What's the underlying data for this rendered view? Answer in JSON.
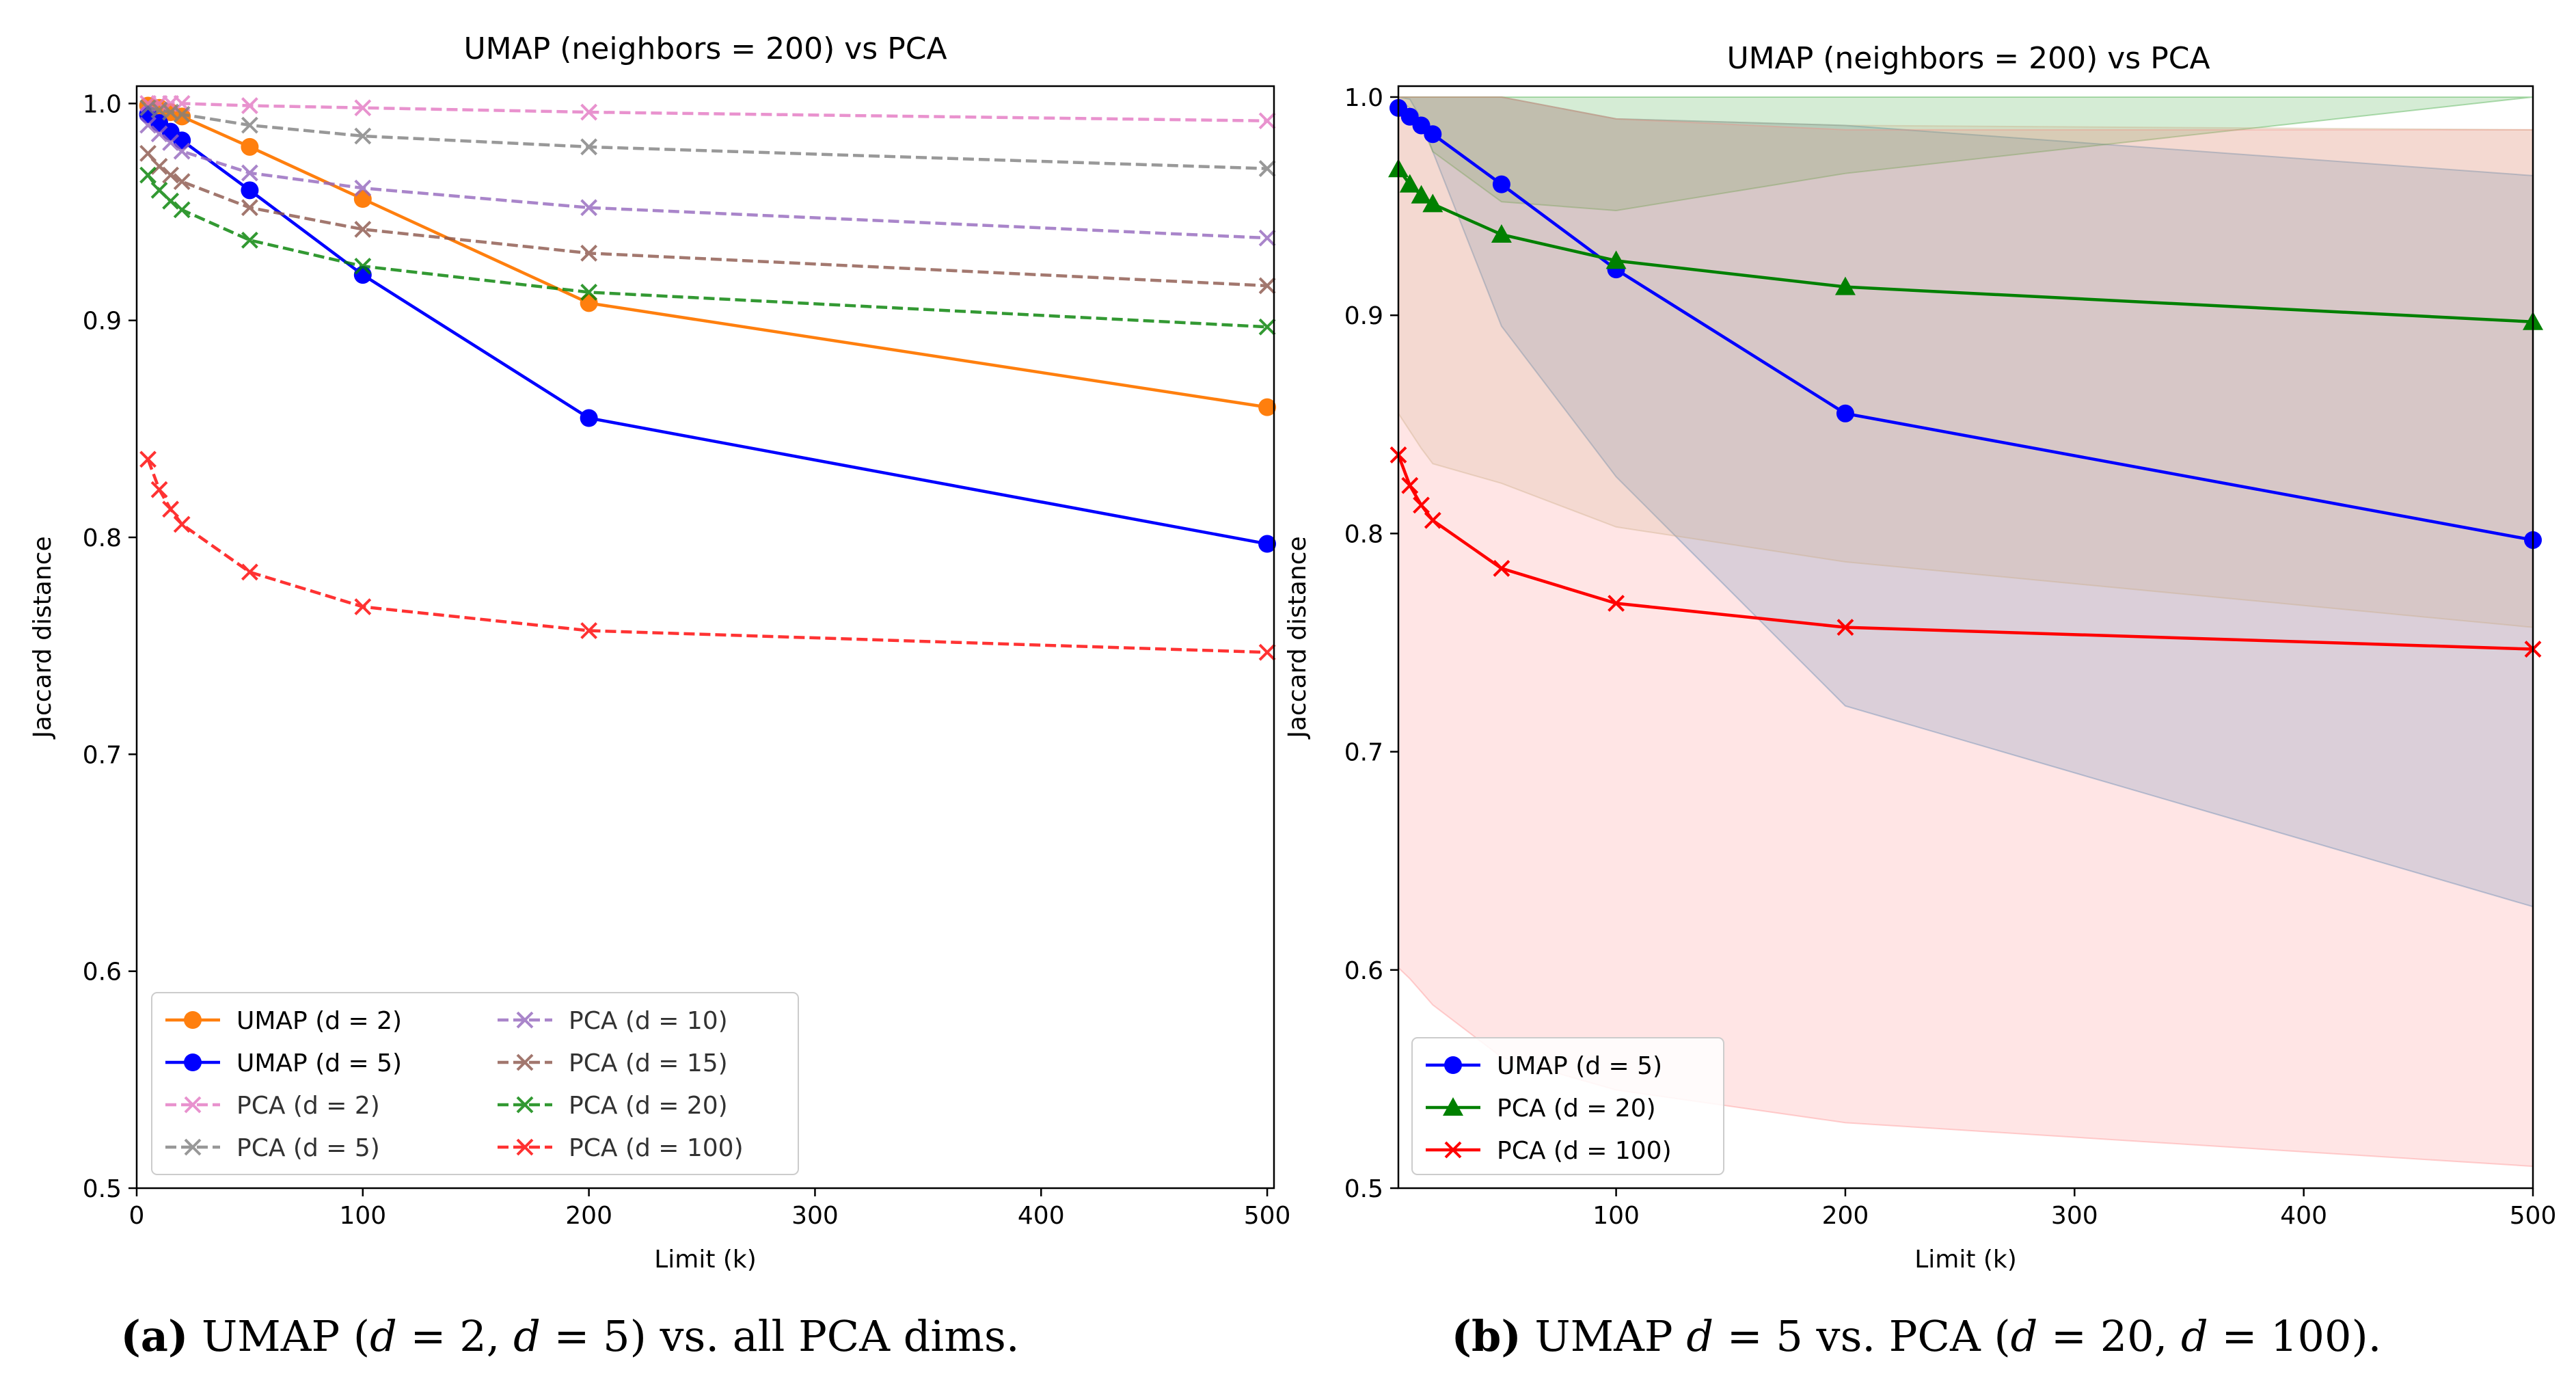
{
  "chart_data": [
    {
      "type": "line",
      "title": "UMAP (neighbors = 200) vs PCA",
      "xlabel": "Limit (k)",
      "ylabel": "Jaccard distance",
      "xlim": [
        0,
        503
      ],
      "ylim": [
        0.5,
        1.008
      ],
      "xticks": [
        0,
        100,
        200,
        300,
        400,
        500
      ],
      "yticks": [
        0.5,
        0.6,
        0.7,
        0.8,
        0.9,
        1.0
      ],
      "xtick_labels": [
        "0",
        "100",
        "200",
        "300",
        "400",
        "500"
      ],
      "ytick_labels": [
        "0.5",
        "0.6",
        "0.7",
        "0.8",
        "0.9",
        "1.0"
      ],
      "grid": false,
      "legend_position": "lower-left",
      "legend_columns": 2,
      "x": [
        5,
        10,
        15,
        20,
        50,
        100,
        200,
        500
      ],
      "series": [
        {
          "name": "UMAP (d = 2)",
          "color": "#ff7f0e",
          "marker": "circle",
          "dash": "solid",
          "opacity": 1,
          "values": [
            0.999,
            0.998,
            0.996,
            0.994,
            0.98,
            0.956,
            0.908,
            0.86
          ]
        },
        {
          "name": "UMAP (d = 5)",
          "color": "#0000ff",
          "marker": "circle",
          "dash": "solid",
          "opacity": 1,
          "values": [
            0.995,
            0.991,
            0.987,
            0.983,
            0.96,
            0.921,
            0.855,
            0.797
          ]
        },
        {
          "name": "PCA (d = 2)",
          "color": "#e377c2",
          "marker": "x",
          "dash": "dashed",
          "opacity": 0.8,
          "values": [
            1.0,
            1.0,
            1.0,
            1.0,
            0.999,
            0.998,
            0.996,
            0.992
          ]
        },
        {
          "name": "PCA (d = 5)",
          "color": "#7f7f7f",
          "marker": "x",
          "dash": "dashed",
          "opacity": 0.8,
          "values": [
            0.998,
            0.997,
            0.996,
            0.995,
            0.99,
            0.985,
            0.98,
            0.97
          ]
        },
        {
          "name": "PCA (d = 10)",
          "color": "#9467bd",
          "marker": "x",
          "dash": "dashed",
          "opacity": 0.8,
          "values": [
            0.99,
            0.986,
            0.982,
            0.978,
            0.968,
            0.961,
            0.952,
            0.938
          ]
        },
        {
          "name": "PCA (d = 15)",
          "color": "#8c564b",
          "marker": "x",
          "dash": "dashed",
          "opacity": 0.8,
          "values": [
            0.977,
            0.971,
            0.967,
            0.964,
            0.952,
            0.942,
            0.931,
            0.916
          ]
        },
        {
          "name": "PCA (d = 20)",
          "color": "#008000",
          "marker": "x",
          "dash": "dashed",
          "opacity": 0.8,
          "values": [
            0.967,
            0.96,
            0.955,
            0.951,
            0.937,
            0.925,
            0.913,
            0.897
          ]
        },
        {
          "name": "PCA (d = 100)",
          "color": "#ff0000",
          "marker": "x",
          "dash": "dashed",
          "opacity": 0.8,
          "values": [
            0.836,
            0.822,
            0.813,
            0.806,
            0.784,
            0.768,
            0.757,
            0.747
          ]
        }
      ]
    },
    {
      "type": "line",
      "title": "UMAP (neighbors = 200) vs PCA",
      "xlabel": "Limit (k)",
      "ylabel": "Jaccard distance",
      "xlim": [
        5,
        500
      ],
      "ylim": [
        0.5,
        1.005
      ],
      "xticks": [
        100,
        200,
        300,
        400,
        500
      ],
      "yticks": [
        0.5,
        0.6,
        0.7,
        0.8,
        0.9,
        1.0
      ],
      "xtick_labels": [
        "100",
        "200",
        "300",
        "400",
        "500"
      ],
      "ytick_labels": [
        "0.5",
        "0.6",
        "0.7",
        "0.8",
        "0.9",
        "1.0"
      ],
      "grid": false,
      "legend_position": "lower-left",
      "legend_columns": 1,
      "x": [
        5,
        10,
        15,
        20,
        50,
        100,
        200,
        500
      ],
      "series": [
        {
          "name": "UMAP (d = 5)",
          "color": "#0000ff",
          "marker": "circle",
          "dash": "solid",
          "opacity": 1,
          "values": [
            0.995,
            0.991,
            0.987,
            0.983,
            0.96,
            0.921,
            0.855,
            0.797
          ],
          "band_color": "#1f77b4",
          "band_lower": [
            1.0,
            0.999,
            0.99,
            0.975,
            0.895,
            0.826,
            0.721,
            0.629
          ],
          "band_upper": [
            1.0,
            1.0,
            1.0,
            1.0,
            1.0,
            0.99,
            0.987,
            0.964
          ]
        },
        {
          "name": "PCA (d = 20)",
          "color": "#008000",
          "marker": "triangle",
          "dash": "solid",
          "opacity": 1,
          "values": [
            0.967,
            0.96,
            0.955,
            0.951,
            0.937,
            0.925,
            0.913,
            0.897
          ],
          "band_color": "#2ca02c",
          "band_lower": [
            0.999,
            0.995,
            0.987,
            0.975,
            0.952,
            0.948,
            0.965,
            1.0
          ],
          "band_upper": [
            1.0,
            1.0,
            1.0,
            1.0,
            1.0,
            1.0,
            1.0,
            1.0
          ]
        },
        {
          "name": "PCA (d = 100)",
          "color": "#ff0000",
          "marker": "x",
          "dash": "solid",
          "opacity": 1,
          "values": [
            0.836,
            0.822,
            0.813,
            0.806,
            0.784,
            0.768,
            0.757,
            0.747
          ],
          "band_color": "#ff7f7f",
          "band_lower": [
            0.601,
            0.596,
            0.59,
            0.584,
            0.56,
            0.545,
            0.53,
            0.51
          ],
          "band_upper": [
            1.0,
            1.0,
            1.0,
            1.0,
            1.0,
            0.99,
            0.985,
            0.985
          ]
        },
        {
          "name": "PCA (d = 15) band",
          "legend": false,
          "band_only": true,
          "band_color": "#c8a882",
          "band_lower": [
            0.855,
            0.847,
            0.839,
            0.832,
            0.823,
            0.803,
            0.787,
            0.757
          ],
          "band_upper": [
            1.0,
            1.0,
            1.0,
            1.0,
            1.0,
            0.99,
            0.987,
            0.985
          ]
        }
      ]
    }
  ],
  "captions": {
    "a": {
      "label": "(a)",
      "text_1": " UMAP (",
      "d1": "d",
      "eq1": " = 2, ",
      "d2": "d",
      "eq2": " = 5) vs. all PCA dims."
    },
    "b": {
      "label": "(b)",
      "text_1": " UMAP ",
      "d1": "d",
      "eq1": " = 5 vs. PCA (",
      "d2": "d",
      "eq2": " = 20, ",
      "d3": "d",
      "eq3": " = 100)."
    }
  }
}
